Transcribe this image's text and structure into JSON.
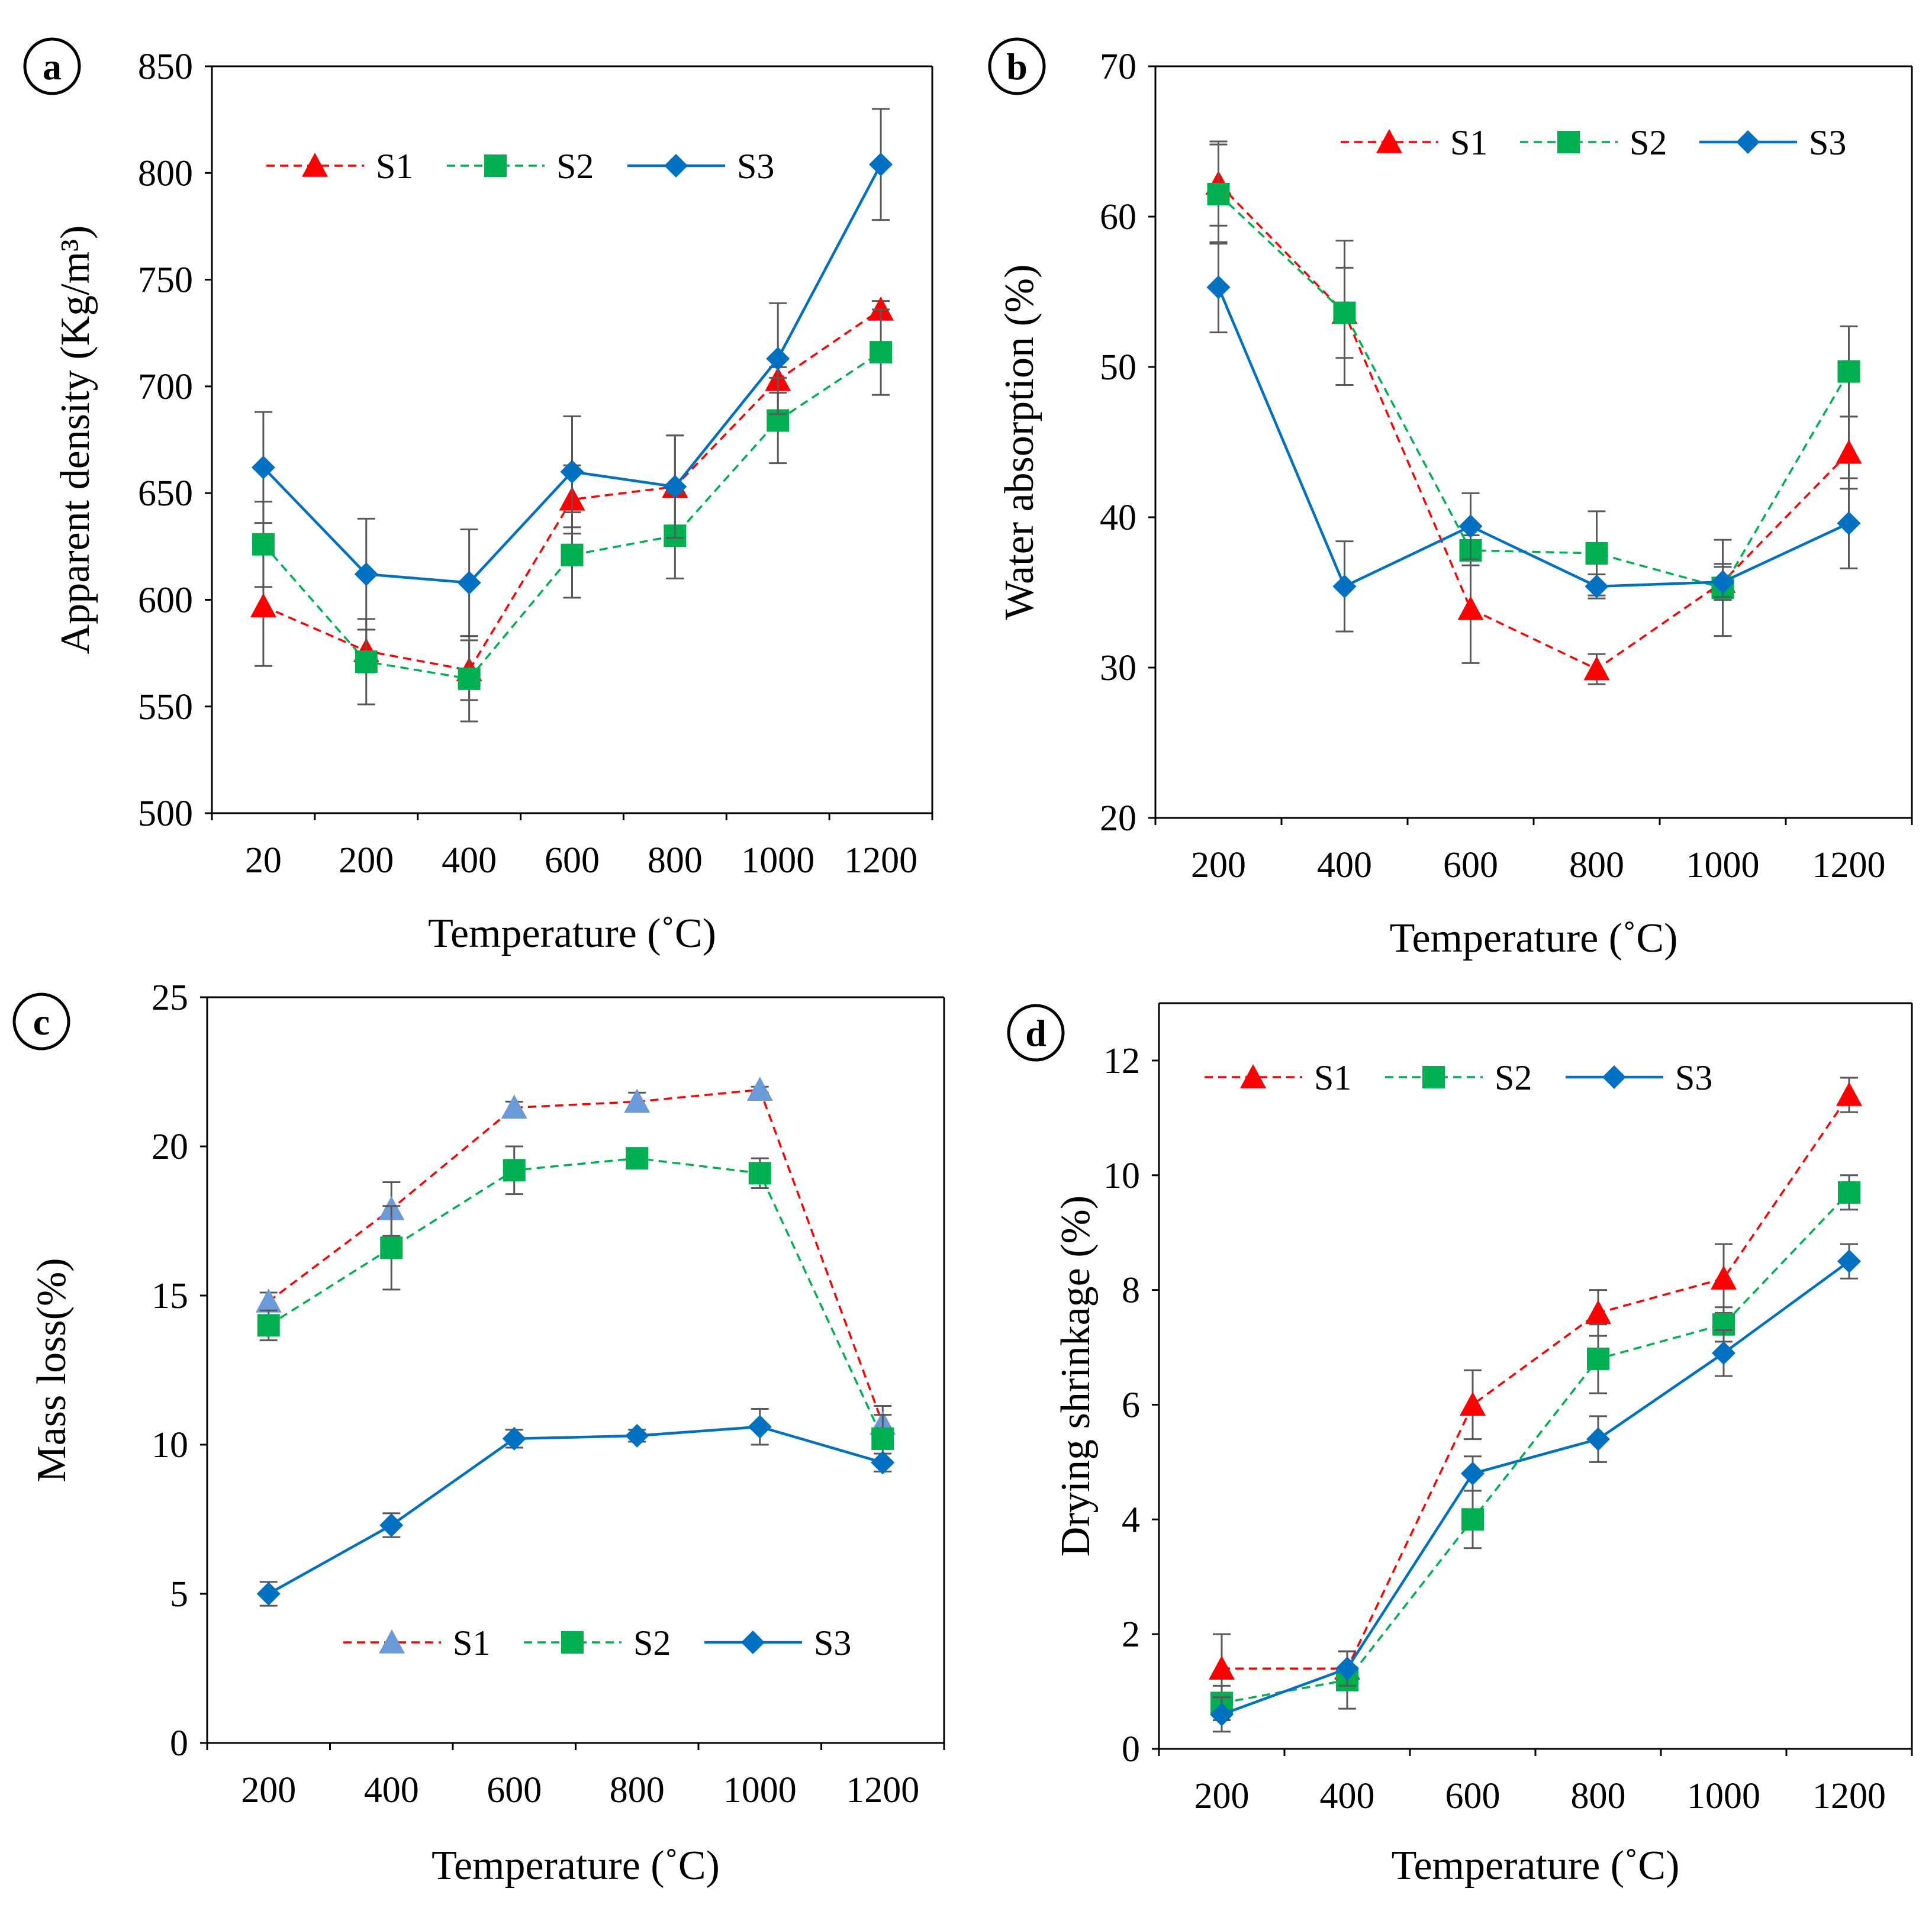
{
  "figure": {
    "panels": [
      {
        "letter": "a"
      },
      {
        "letter": "b"
      },
      {
        "letter": "c"
      },
      {
        "letter": "d"
      }
    ]
  },
  "series_styles": {
    "S1": {
      "color": "#ff0000",
      "dashed": true,
      "marker": "triangle"
    },
    "S2": {
      "color": "#00b050",
      "dashed": true,
      "marker": "square"
    },
    "S3": {
      "color": "#0070c0",
      "dashed": false,
      "marker": "diamond"
    }
  },
  "chart_data": [
    {
      "panel": "a",
      "type": "line",
      "title": "",
      "xlabel": "Temperature (˚C)",
      "ylabel": "Apparent density (Kg/m³)",
      "categories": [
        "20",
        "200",
        "400",
        "600",
        "800",
        "1000",
        "1200"
      ],
      "ylim": [
        500,
        850
      ],
      "yticks": [
        500,
        550,
        600,
        650,
        700,
        750,
        800,
        850
      ],
      "legend_position": "top-left",
      "series": [
        {
          "name": "S1",
          "values": [
            597,
            576,
            567,
            647,
            653,
            703,
            736
          ],
          "errors": [
            28,
            10,
            14,
            16,
            24,
            6,
            4
          ]
        },
        {
          "name": "S2",
          "values": [
            626,
            571,
            563,
            621,
            630,
            684,
            716
          ],
          "errors": [
            20,
            20,
            20,
            20,
            20,
            20,
            20
          ]
        },
        {
          "name": "S3",
          "values": [
            662,
            612,
            608,
            660,
            653,
            713,
            804
          ],
          "errors": [
            26,
            26,
            25,
            26,
            24,
            26,
            26
          ]
        }
      ]
    },
    {
      "panel": "b",
      "type": "line",
      "title": "",
      "xlabel": "Temperature (˚C)",
      "ylabel": "Water absorption (%)",
      "categories": [
        "200",
        "400",
        "600",
        "800",
        "1000",
        "1200"
      ],
      "ylim": [
        20,
        70
      ],
      "yticks": [
        20,
        30,
        40,
        50,
        60,
        70
      ],
      "legend_position": "top-right",
      "series": [
        {
          "name": "S1",
          "values": [
            62.2,
            53.6,
            33.9,
            29.9,
            35.7,
            44.3
          ],
          "errors": [
            2.8,
            3.0,
            3.6,
            1.0,
            1.2,
            2.4
          ]
        },
        {
          "name": "S2",
          "values": [
            61.5,
            53.6,
            37.8,
            37.6,
            35.3,
            49.7
          ],
          "errors": [
            3.3,
            4.8,
            1.0,
            2.8,
            3.2,
            3.0
          ]
        },
        {
          "name": "S3",
          "values": [
            55.3,
            35.4,
            39.4,
            35.4,
            35.7,
            39.6
          ],
          "errors": [
            3.0,
            3.0,
            2.2,
            0.8,
            1.0,
            3.0
          ]
        }
      ]
    },
    {
      "panel": "c",
      "type": "line",
      "title": "",
      "xlabel": "Temperature (˚C)",
      "ylabel": "Mass loss(%)",
      "categories": [
        "200",
        "400",
        "600",
        "800",
        "1000",
        "1200"
      ],
      "ylim": [
        0,
        25
      ],
      "yticks": [
        0,
        5,
        10,
        15,
        20,
        25
      ],
      "legend_position": "bottom-right",
      "series": [
        {
          "name": "S1",
          "values": [
            14.8,
            17.9,
            21.3,
            21.5,
            21.9,
            10.7
          ],
          "errors": [
            0.3,
            0.9,
            0.2,
            0.3,
            0.1,
            0.6
          ],
          "marker_color": "#6a9bd8"
        },
        {
          "name": "S2",
          "values": [
            14.0,
            16.6,
            19.2,
            19.6,
            19.1,
            10.2
          ],
          "errors": [
            0.5,
            1.4,
            0.8,
            0.2,
            0.5,
            0.8
          ]
        },
        {
          "name": "S3",
          "values": [
            5.0,
            7.3,
            10.2,
            10.3,
            10.6,
            9.4
          ],
          "errors": [
            0.4,
            0.4,
            0.3,
            0.2,
            0.6,
            0.3
          ]
        }
      ]
    },
    {
      "panel": "d",
      "type": "line",
      "title": "",
      "xlabel": "Temperature (˚C)",
      "ylabel": "Drying shrinkage (%)",
      "categories": [
        "200",
        "400",
        "600",
        "800",
        "1000",
        "1200"
      ],
      "ylim": [
        0,
        13
      ],
      "yticks": [
        0,
        2,
        4,
        6,
        8,
        10,
        12
      ],
      "legend_position": "top-left",
      "series": [
        {
          "name": "S1",
          "values": [
            1.4,
            1.4,
            6.0,
            7.6,
            8.2,
            11.4
          ],
          "errors": [
            0.6,
            0.3,
            0.6,
            0.4,
            0.6,
            0.3
          ]
        },
        {
          "name": "S2",
          "values": [
            0.8,
            1.2,
            4.0,
            6.8,
            7.4,
            9.7
          ],
          "errors": [
            0.3,
            0.5,
            0.5,
            0.6,
            0.3,
            0.3
          ]
        },
        {
          "name": "S3",
          "values": [
            0.6,
            1.4,
            4.8,
            5.4,
            6.9,
            8.5
          ],
          "errors": [
            0.3,
            0.3,
            0.3,
            0.4,
            0.4,
            0.3
          ]
        }
      ]
    }
  ]
}
